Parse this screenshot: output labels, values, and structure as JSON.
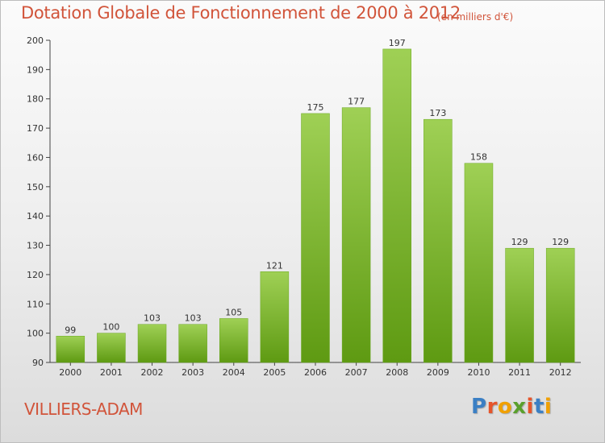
{
  "header": {
    "title": "Dotation Globale de Fonctionnement de 2000 à 2012",
    "unit": "(en milliers d'€)"
  },
  "footer": {
    "commune": "VILLIERS-ADAM",
    "logo_text": "Proxiti",
    "logo_letter_colors": [
      "#3b7fc4",
      "#e6552b",
      "#f0a000",
      "#5aa02c",
      "#e6552b",
      "#3b7fc4",
      "#f0a000"
    ]
  },
  "chart_data": {
    "type": "bar",
    "title": "Dotation Globale de Fonctionnement de 2000 à 2012",
    "xlabel": "",
    "ylabel": "",
    "categories": [
      "2000",
      "2001",
      "2002",
      "2003",
      "2004",
      "2005",
      "2006",
      "2007",
      "2008",
      "2009",
      "2010",
      "2011",
      "2012"
    ],
    "values": [
      99,
      100,
      103,
      103,
      105,
      121,
      175,
      177,
      197,
      173,
      158,
      129,
      129
    ],
    "ylim": [
      90,
      200
    ],
    "yticks": [
      90,
      100,
      110,
      120,
      130,
      140,
      150,
      160,
      170,
      180,
      190,
      200
    ],
    "grid": false,
    "bar_color_top": "#9fd055",
    "bar_color_bottom": "#5e9a12"
  }
}
